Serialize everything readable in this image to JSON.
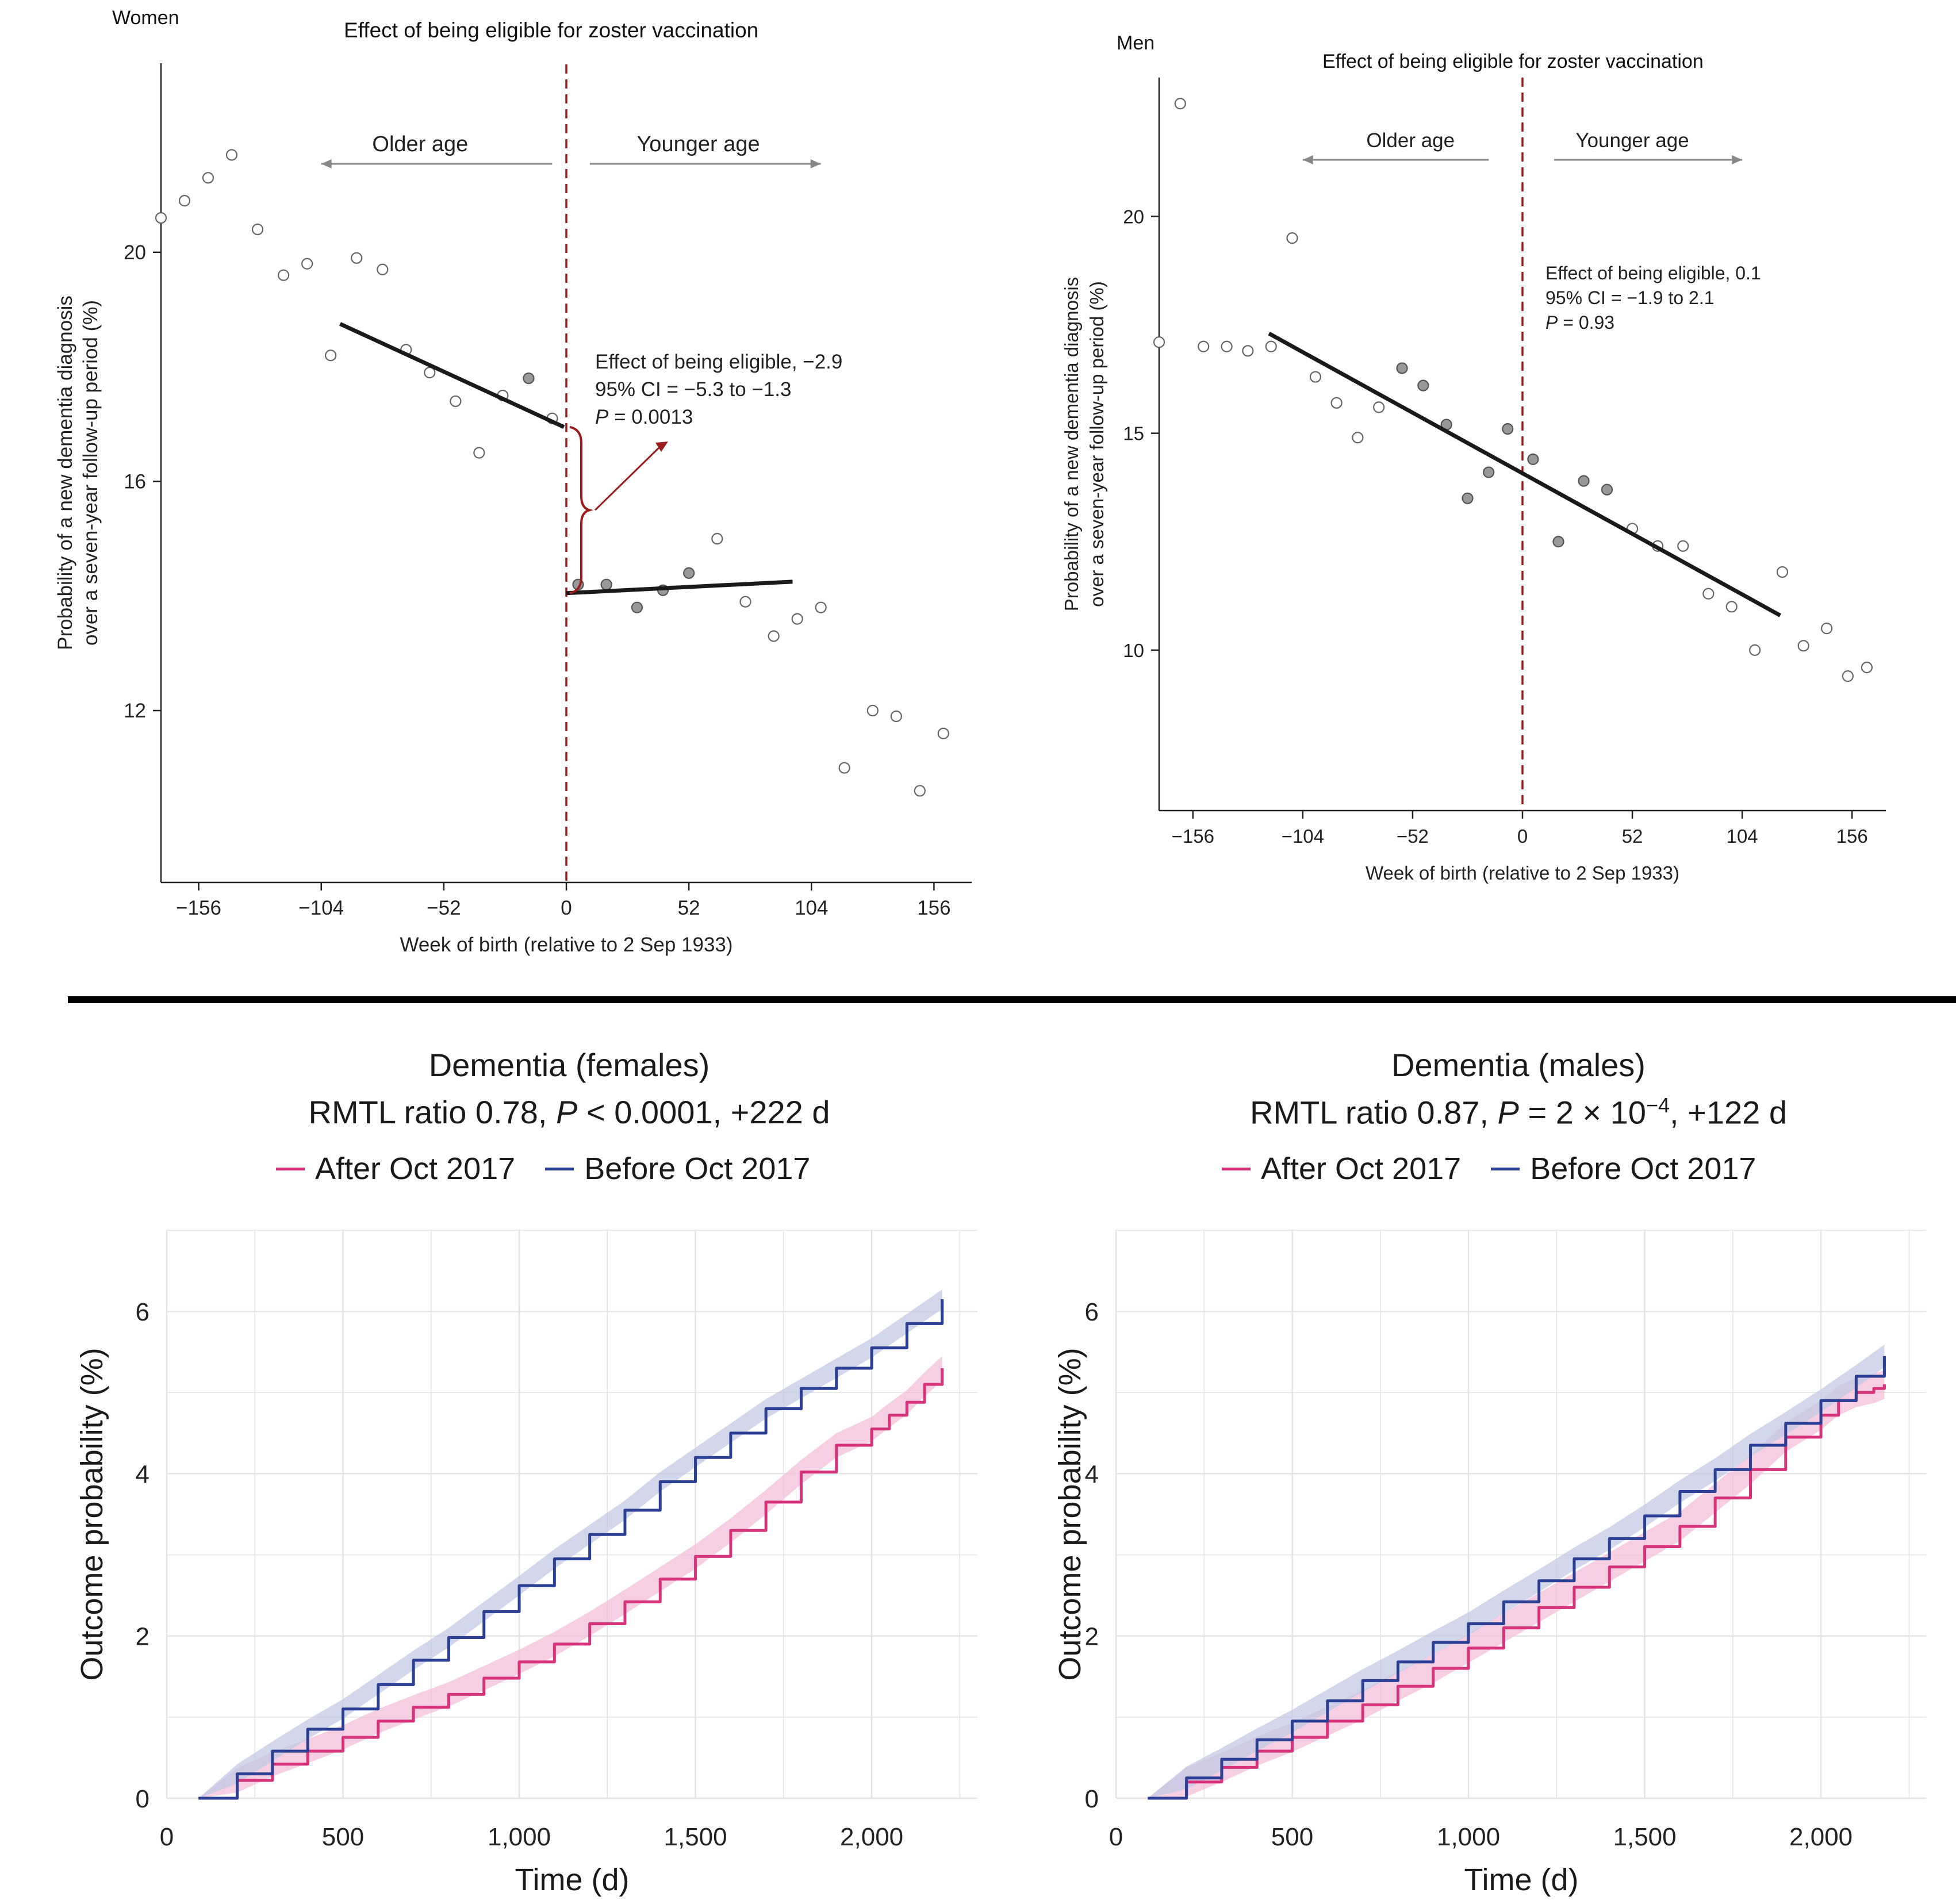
{
  "panels": {
    "women": {
      "corner_label": "Women",
      "title": "Effect of being eligible for zoster vaccination",
      "older_label": "Older age",
      "younger_label": "Younger age",
      "annotation": [
        "Effect of being eligible, −2.9",
        "95% CI = −5.3 to −1.3",
        "P",
        " = 0.0013"
      ]
    },
    "men": {
      "corner_label": "Men",
      "title": "Effect of being eligible for zoster vaccination",
      "older_label": "Older age",
      "younger_label": "Younger age",
      "annotation": [
        "Effect of being eligible, 0.1",
        "95% CI = −1.9 to 2.1",
        "P",
        " = 0.93"
      ]
    },
    "females_km": {
      "title": "Dementia (females)",
      "subtitle_parts": [
        "RMTL ratio 0.78, ",
        "P",
        " < 0.0001, +222 d"
      ],
      "legend": [
        "After Oct 2017",
        "Before Oct 2017"
      ]
    },
    "males_km": {
      "title": "Dementia (males)",
      "subtitle_parts": [
        "RMTL ratio 0.87, ",
        "P",
        " = 2 × 10",
        "−4",
        ", +122 d"
      ],
      "legend": [
        "After Oct 2017",
        "Before Oct 2017"
      ]
    }
  },
  "colors": {
    "after": "#d6337a",
    "before": "#2b3f94",
    "after_band": "#f3bfd8",
    "before_band": "#c3c9e6",
    "cutoff": "#9b1c1c",
    "grid": "#e4e4e4"
  },
  "chart_data": [
    {
      "type": "scatter",
      "title": "Effect of being eligible for zoster vaccination",
      "xlabel": "Week of birth (relative to 2 Sep 1933)",
      "ylabel": "Probability of a new dementia diagnosis over a seven-year follow-up period (%)",
      "xlim": [
        -172,
        172
      ],
      "ylim": [
        9.0,
        23.3
      ],
      "xticks": [
        -156,
        -104,
        -52,
        0,
        52,
        104,
        156
      ],
      "yticks": [
        12,
        16,
        20
      ],
      "cutoff": 0,
      "points_open": [
        [
          -172,
          20.6
        ],
        [
          -162,
          20.9
        ],
        [
          -152,
          21.3
        ],
        [
          -142,
          21.7
        ],
        [
          -131,
          20.4
        ],
        [
          -120,
          19.6
        ],
        [
          -110,
          19.8
        ],
        [
          -100,
          18.2
        ],
        [
          -89,
          19.9
        ],
        [
          -78,
          19.7
        ],
        [
          108,
          13.8
        ],
        [
          118,
          11.0
        ],
        [
          130,
          12.0
        ],
        [
          140,
          11.9
        ],
        [
          150,
          10.6
        ],
        [
          160,
          11.6
        ],
        [
          -68,
          18.3
        ],
        [
          -58,
          17.9
        ],
        [
          -47,
          17.4
        ],
        [
          -37,
          16.5
        ],
        [
          -27,
          17.5
        ],
        [
          -6,
          17.1
        ],
        [
          64,
          15.0
        ],
        [
          76,
          13.9
        ],
        [
          88,
          13.3
        ],
        [
          98,
          13.6
        ]
      ],
      "points_filled": [
        [
          -16,
          17.8
        ],
        [
          5,
          14.2
        ],
        [
          17,
          14.2
        ],
        [
          30,
          13.8
        ],
        [
          41,
          14.1
        ],
        [
          52,
          14.4
        ]
      ],
      "fit_left": [
        [
          -96,
          18.75
        ],
        [
          -1,
          16.95
        ]
      ],
      "fit_right": [
        [
          0,
          14.05
        ],
        [
          96,
          14.25
        ]
      ],
      "annotation": {
        "effect": -2.9,
        "ci": [
          -5.3,
          -1.3
        ],
        "p": 0.0013
      }
    },
    {
      "type": "scatter",
      "title": "Effect of being eligible for zoster vaccination",
      "xlabel": "Week of birth (relative to 2 Sep 1933)",
      "ylabel": "Probability of a new dementia diagnosis over a seven-year follow-up period (%)",
      "xlim": [
        -172,
        172
      ],
      "ylim": [
        6.3,
        23.2
      ],
      "xticks": [
        -156,
        -104,
        -52,
        0,
        52,
        104,
        156
      ],
      "yticks": [
        10,
        15,
        20
      ],
      "cutoff": 0,
      "points_open": [
        [
          -172,
          17.1
        ],
        [
          -162,
          22.6
        ],
        [
          -151,
          17.0
        ],
        [
          -140,
          17.0
        ],
        [
          -130,
          16.9
        ],
        [
          -119,
          17.0
        ],
        [
          -109,
          19.5
        ],
        [
          -98,
          16.3
        ],
        [
          -88,
          15.7
        ],
        [
          -78,
          14.9
        ],
        [
          -68,
          15.6
        ],
        [
          110,
          10.0
        ],
        [
          123,
          11.8
        ],
        [
          133,
          10.1
        ],
        [
          144,
          10.5
        ],
        [
          154,
          9.4
        ],
        [
          163,
          9.6
        ],
        [
          -57,
          16.5
        ],
        [
          -47,
          16.1
        ],
        [
          -36,
          15.2
        ],
        [
          -26,
          13.5
        ],
        [
          -16,
          14.1
        ],
        [
          -7,
          15.1
        ],
        [
          5,
          14.4
        ],
        [
          17,
          12.5
        ],
        [
          29,
          13.9
        ],
        [
          40,
          13.7
        ],
        [
          52,
          12.8
        ],
        [
          64,
          12.4
        ],
        [
          76,
          12.4
        ],
        [
          88,
          11.3
        ],
        [
          99,
          11.0
        ]
      ],
      "points_filled": [
        [
          -57,
          16.5
        ],
        [
          -47,
          16.1
        ],
        [
          -36,
          15.2
        ],
        [
          -26,
          13.5
        ],
        [
          -16,
          14.1
        ],
        [
          -7,
          15.1
        ],
        [
          5,
          14.4
        ],
        [
          17,
          12.5
        ],
        [
          29,
          13.9
        ],
        [
          40,
          13.7
        ]
      ],
      "fit_line": [
        [
          -120,
          17.3
        ],
        [
          122,
          10.8
        ]
      ],
      "annotation": {
        "effect": 0.1,
        "ci": [
          -1.9,
          2.1
        ],
        "p": 0.93
      }
    },
    {
      "type": "line",
      "title": "Dementia (females)",
      "subtitle": "RMTL ratio 0.78, P < 0.0001, +222 d",
      "xlabel": "Time (d)",
      "ylabel": "Outcome probability (%)",
      "xlim": [
        0,
        2300
      ],
      "ylim": [
        0,
        7.0
      ],
      "xticks": [
        0,
        500,
        1000,
        1500,
        2000
      ],
      "xtick_labels": [
        "0",
        "500",
        "1,000",
        "1,500",
        "2,000"
      ],
      "yticks": [
        0,
        2,
        4,
        6
      ],
      "series": [
        {
          "name": "After Oct 2017",
          "x": [
            90,
            200,
            300,
            400,
            500,
            600,
            700,
            800,
            900,
            1000,
            1100,
            1200,
            1300,
            1400,
            1500,
            1600,
            1700,
            1800,
            1900,
            2000,
            2050,
            2100,
            2150,
            2200
          ],
          "values": [
            0,
            0.22,
            0.42,
            0.58,
            0.75,
            0.95,
            1.12,
            1.28,
            1.48,
            1.68,
            1.9,
            2.15,
            2.42,
            2.7,
            2.98,
            3.3,
            3.65,
            4.02,
            4.35,
            4.55,
            4.72,
            4.88,
            5.1,
            5.3
          ],
          "band": 0.15
        },
        {
          "name": "Before Oct 2017",
          "x": [
            90,
            200,
            300,
            400,
            500,
            600,
            700,
            800,
            900,
            1000,
            1100,
            1200,
            1300,
            1400,
            1500,
            1600,
            1700,
            1800,
            1900,
            2000,
            2100,
            2200
          ],
          "values": [
            0,
            0.3,
            0.58,
            0.85,
            1.1,
            1.4,
            1.7,
            1.98,
            2.3,
            2.62,
            2.95,
            3.25,
            3.55,
            3.9,
            4.2,
            4.5,
            4.8,
            5.05,
            5.3,
            5.55,
            5.85,
            6.15
          ],
          "band": 0.12
        }
      ]
    },
    {
      "type": "line",
      "title": "Dementia (males)",
      "subtitle": "RMTL ratio 0.87, P = 2 × 10^-4, +122 d",
      "xlabel": "Time (d)",
      "ylabel": "Outcome probability (%)",
      "xlim": [
        0,
        2300
      ],
      "ylim": [
        0,
        7.0
      ],
      "xticks": [
        0,
        500,
        1000,
        1500,
        2000
      ],
      "xtick_labels": [
        "0",
        "500",
        "1,000",
        "1,500",
        "2,000"
      ],
      "yticks": [
        0,
        2,
        4,
        6
      ],
      "series": [
        {
          "name": "After Oct 2017",
          "x": [
            90,
            200,
            300,
            400,
            500,
            600,
            700,
            800,
            900,
            1000,
            1100,
            1200,
            1300,
            1400,
            1500,
            1600,
            1700,
            1800,
            1900,
            2000,
            2050,
            2100,
            2150,
            2180
          ],
          "values": [
            0,
            0.2,
            0.38,
            0.58,
            0.75,
            0.95,
            1.15,
            1.38,
            1.6,
            1.85,
            2.1,
            2.35,
            2.6,
            2.85,
            3.1,
            3.35,
            3.7,
            4.05,
            4.45,
            4.72,
            4.9,
            5.0,
            5.05,
            5.1
          ],
          "band": 0.18
        },
        {
          "name": "Before Oct 2017",
          "x": [
            90,
            200,
            300,
            400,
            500,
            600,
            700,
            800,
            900,
            1000,
            1100,
            1200,
            1300,
            1400,
            1500,
            1600,
            1700,
            1800,
            1900,
            2000,
            2100,
            2180
          ],
          "values": [
            0,
            0.25,
            0.48,
            0.72,
            0.95,
            1.2,
            1.45,
            1.68,
            1.92,
            2.15,
            2.42,
            2.68,
            2.95,
            3.2,
            3.48,
            3.78,
            4.05,
            4.35,
            4.62,
            4.9,
            5.2,
            5.45
          ],
          "band": 0.14
        }
      ]
    }
  ]
}
